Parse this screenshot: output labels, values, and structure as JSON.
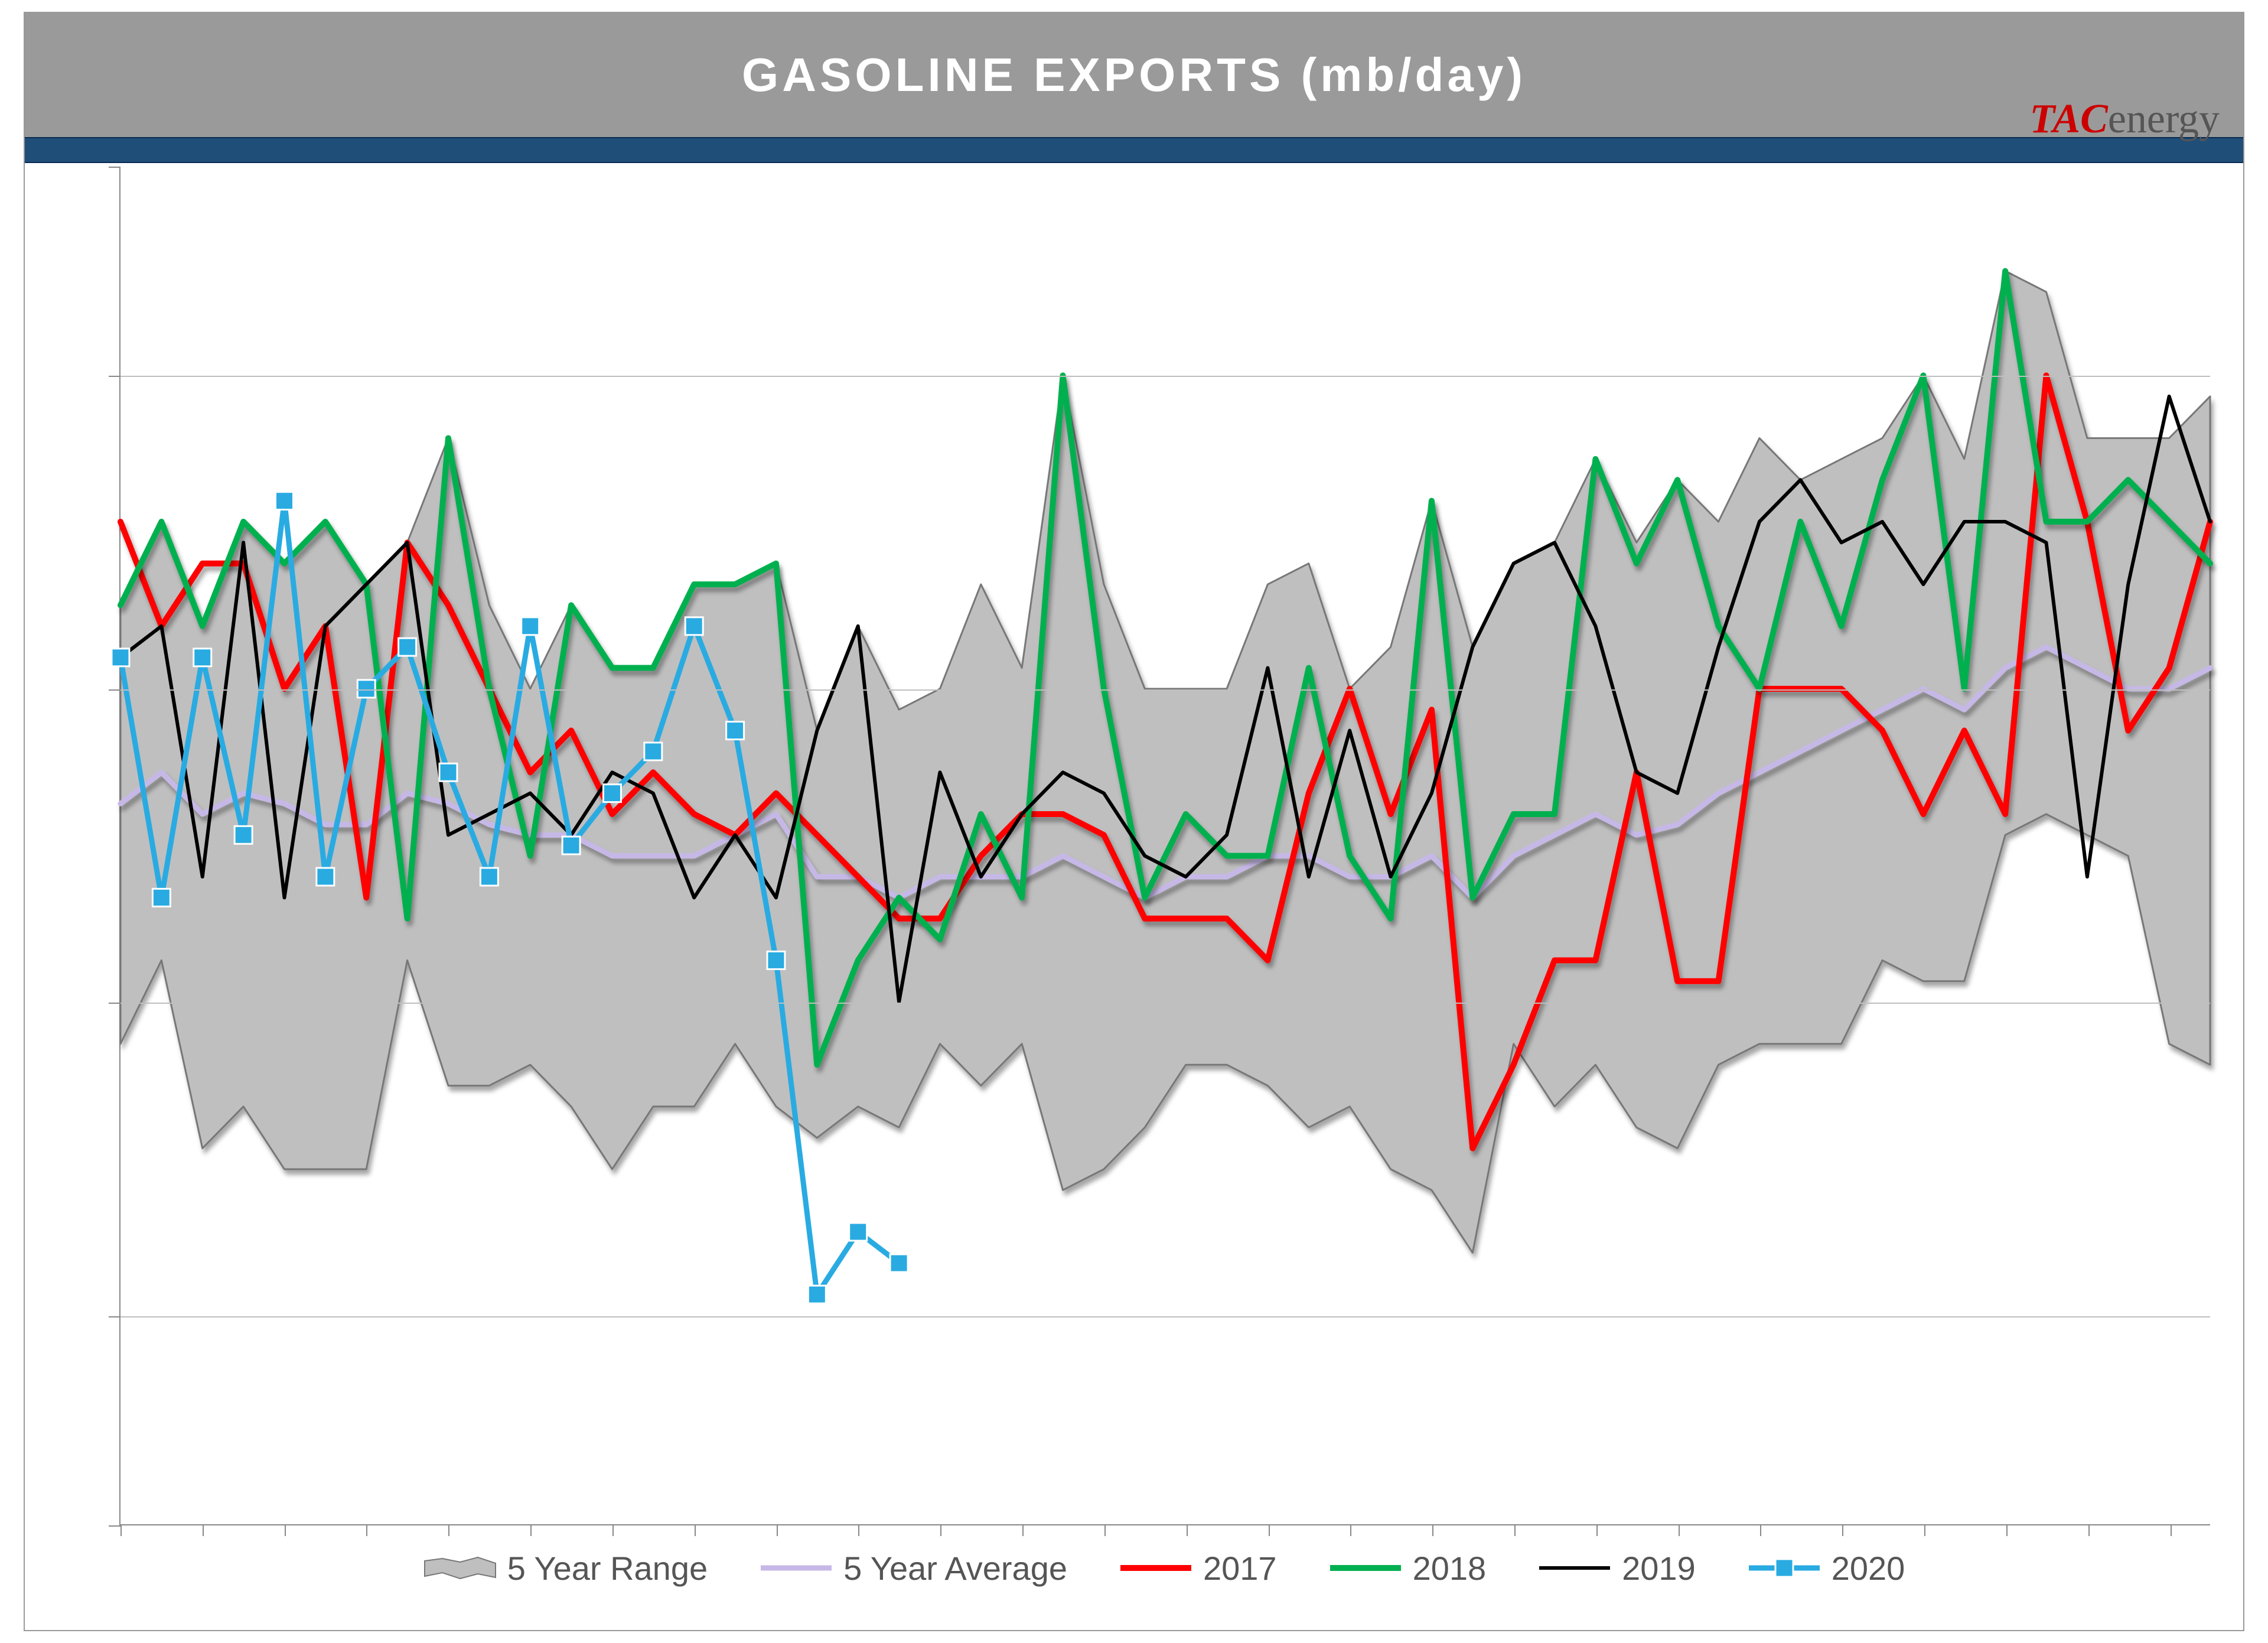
{
  "title": "GASOLINE  EXPORTS  (mb/day)",
  "logo": {
    "left": "TAC",
    "right": "energy"
  },
  "chart": {
    "type": "line",
    "background_color": "#ffffff",
    "title_bar_color": "#9a9a9a",
    "title_text_color": "#ffffff",
    "band_color": "#1f4e79",
    "grid_color": "#bfbfbf",
    "axis_color": "#888888",
    "xlim": [
      1,
      52
    ],
    "ylim": [
      100,
      1400
    ],
    "y_gridlines": [
      300,
      600,
      900,
      1200
    ],
    "y_ticks": [
      100,
      300,
      600,
      900,
      1200,
      1400
    ],
    "x_tick_step": 2,
    "n_points": 52,
    "range_band": {
      "fill": "#bfbfbf",
      "stroke": "#777777",
      "stroke_width": 3,
      "upper": [
        980,
        1060,
        960,
        1060,
        1020,
        1060,
        1000,
        1040,
        1140,
        980,
        900,
        980,
        920,
        920,
        1000,
        1000,
        1020,
        860,
        960,
        880,
        900,
        1000,
        920,
        1200,
        1000,
        900,
        900,
        900,
        1000,
        1020,
        900,
        940,
        1080,
        940,
        1020,
        1040,
        1120,
        1040,
        1100,
        1060,
        1140,
        1100,
        1120,
        1140,
        1200,
        1120,
        1300,
        1280,
        1140,
        1140,
        1140,
        1180
      ],
      "lower": [
        560,
        640,
        460,
        500,
        440,
        440,
        440,
        640,
        520,
        520,
        540,
        500,
        440,
        500,
        500,
        560,
        500,
        470,
        500,
        480,
        560,
        520,
        560,
        420,
        440,
        480,
        540,
        540,
        520,
        480,
        500,
        440,
        420,
        360,
        560,
        500,
        540,
        480,
        460,
        540,
        560,
        560,
        560,
        640,
        620,
        620,
        760,
        780,
        760,
        740,
        560,
        540
      ]
    },
    "series": [
      {
        "name": "5 Year Average",
        "color": "#c6b8e6",
        "width": 9,
        "shadow": true,
        "data": [
          790,
          820,
          780,
          800,
          790,
          770,
          770,
          800,
          790,
          770,
          760,
          760,
          740,
          740,
          740,
          760,
          780,
          720,
          720,
          700,
          720,
          720,
          720,
          740,
          720,
          700,
          720,
          720,
          740,
          740,
          720,
          720,
          740,
          700,
          740,
          760,
          780,
          760,
          770,
          800,
          820,
          840,
          860,
          880,
          900,
          880,
          920,
          940,
          920,
          900,
          900,
          920
        ]
      },
      {
        "name": "2017",
        "color": "#ff0000",
        "width": 10,
        "shadow": true,
        "data": [
          1060,
          960,
          1020,
          1020,
          900,
          960,
          700,
          1040,
          980,
          900,
          820,
          860,
          780,
          820,
          780,
          760,
          800,
          760,
          720,
          680,
          680,
          740,
          780,
          780,
          760,
          680,
          680,
          680,
          640,
          800,
          900,
          780,
          880,
          460,
          540,
          640,
          640,
          820,
          620,
          620,
          900,
          900,
          900,
          860,
          780,
          860,
          780,
          1200,
          1060,
          860,
          920,
          1060
        ]
      },
      {
        "name": "2018",
        "color": "#00b050",
        "width": 10,
        "shadow": true,
        "data": [
          980,
          1060,
          960,
          1060,
          1020,
          1060,
          1000,
          680,
          1140,
          900,
          740,
          980,
          920,
          920,
          1000,
          1000,
          1020,
          540,
          640,
          700,
          660,
          780,
          700,
          1200,
          900,
          700,
          780,
          740,
          740,
          920,
          740,
          680,
          1080,
          700,
          780,
          780,
          1120,
          1020,
          1100,
          960,
          900,
          1060,
          960,
          1100,
          1200,
          900,
          1300,
          1060,
          1060,
          1100,
          1060,
          1020
        ]
      },
      {
        "name": "2019",
        "color": "#000000",
        "width": 6,
        "shadow": false,
        "data": [
          930,
          960,
          720,
          1040,
          700,
          960,
          1000,
          1040,
          760,
          780,
          800,
          760,
          820,
          800,
          700,
          760,
          700,
          860,
          960,
          600,
          820,
          720,
          780,
          820,
          800,
          740,
          720,
          760,
          920,
          720,
          860,
          720,
          800,
          940,
          1020,
          1040,
          960,
          820,
          800,
          940,
          1060,
          1100,
          1040,
          1060,
          1000,
          1060,
          1060,
          1040,
          720,
          1000,
          1180,
          1060
        ]
      },
      {
        "name": "2020",
        "color": "#29abe2",
        "width": 9,
        "marker": "square",
        "marker_size": 30,
        "shadow": false,
        "data": [
          930,
          700,
          930,
          760,
          1080,
          720,
          900,
          940,
          820,
          720,
          960,
          750,
          800,
          840,
          960,
          860,
          640,
          320,
          380,
          350
        ]
      }
    ],
    "legend": {
      "font_size": 56,
      "text_color": "#555555",
      "items": [
        {
          "key": "range",
          "label": "5 Year Range"
        },
        {
          "key": "avg",
          "label": "5 Year Average"
        },
        {
          "key": "2017",
          "label": "2017"
        },
        {
          "key": "2018",
          "label": "2018"
        },
        {
          "key": "2019",
          "label": "2019"
        },
        {
          "key": "2020",
          "label": "2020"
        }
      ]
    }
  }
}
